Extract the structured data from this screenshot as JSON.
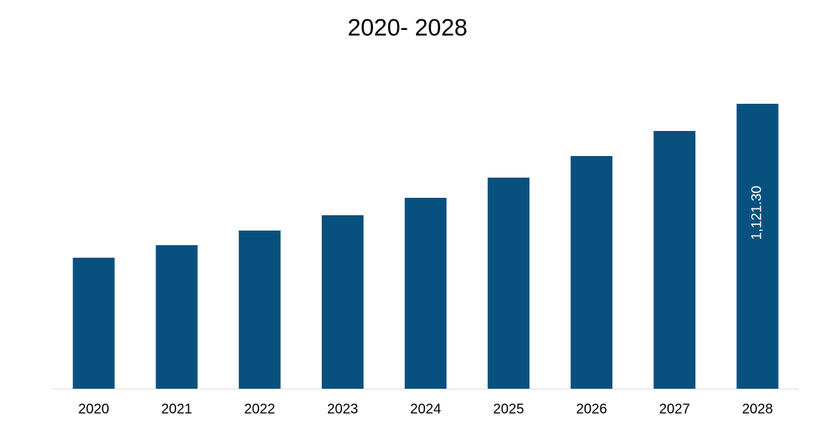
{
  "chart_data": {
    "type": "bar",
    "title": "2020- 2028",
    "categories": [
      "2020",
      "2021",
      "2022",
      "2023",
      "2024",
      "2025",
      "2026",
      "2027",
      "2028"
    ],
    "values": [
      515.5,
      564.8,
      622.4,
      682.7,
      751.2,
      830.7,
      915.7,
      1014.4,
      1121.3
    ],
    "value_labels": [
      null,
      null,
      null,
      null,
      null,
      null,
      null,
      null,
      "1,121.30"
    ],
    "color": "#08517e"
  }
}
